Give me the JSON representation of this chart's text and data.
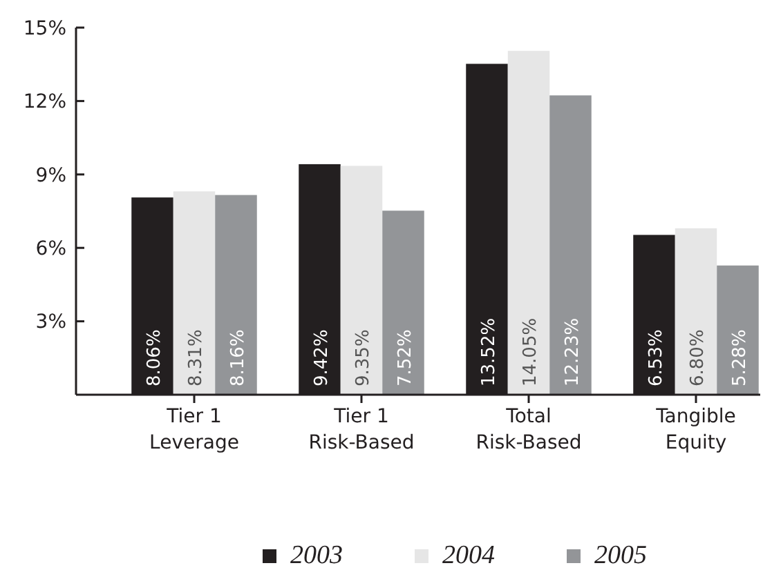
{
  "chart_data": {
    "type": "bar",
    "categories": [
      "Tier 1\nLeverage",
      "Tier 1\nRisk-Based",
      "Total\nRisk-Based",
      "Tangible\nEquity"
    ],
    "series": [
      {
        "name": "2003",
        "color": "#231f20",
        "values": [
          8.06,
          9.42,
          13.52,
          6.53
        ],
        "value_labels": [
          "8.06%",
          "9.42%",
          "13.52%",
          "6.53%"
        ]
      },
      {
        "name": "2004",
        "color": "#e6e6e6",
        "values": [
          8.31,
          9.35,
          14.05,
          6.8
        ],
        "value_labels": [
          "8.31%",
          "9.35%",
          "14.05%",
          "6.80%"
        ]
      },
      {
        "name": "2005",
        "color": "#939598",
        "values": [
          8.16,
          7.52,
          12.23,
          5.28
        ],
        "value_labels": [
          "8.16%",
          "7.52%",
          "12.23%",
          "5.28%"
        ]
      }
    ],
    "ylim": [
      0,
      15
    ],
    "yticks": [
      {
        "value": 3,
        "label": "3%"
      },
      {
        "value": 6,
        "label": "6%"
      },
      {
        "value": 9,
        "label": "9%"
      },
      {
        "value": 12,
        "label": "12%"
      },
      {
        "value": 15,
        "label": "15%"
      }
    ],
    "grid": false,
    "legend": "bottom"
  }
}
